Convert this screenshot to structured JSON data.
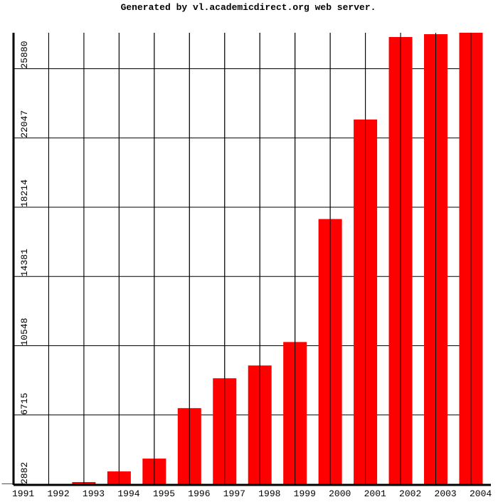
{
  "chart_data": {
    "type": "bar",
    "title": "Generated by vl.academicdirect.org web server.",
    "categories": [
      "1991",
      "1992",
      "1993",
      "1994",
      "1995",
      "1996",
      "1997",
      "1998",
      "1999",
      "2000",
      "2001",
      "2002",
      "2003",
      "2004"
    ],
    "values": [
      2920,
      2882,
      3000,
      3590,
      4299,
      7092,
      8745,
      9453,
      10752,
      17560,
      23069,
      27634,
      27791,
      27870
    ],
    "color": "#ff0000",
    "ylim": [
      2882,
      27870
    ],
    "yticks": [
      2882,
      6715,
      10548,
      14381,
      18214,
      22047,
      25880
    ],
    "grid": true
  }
}
